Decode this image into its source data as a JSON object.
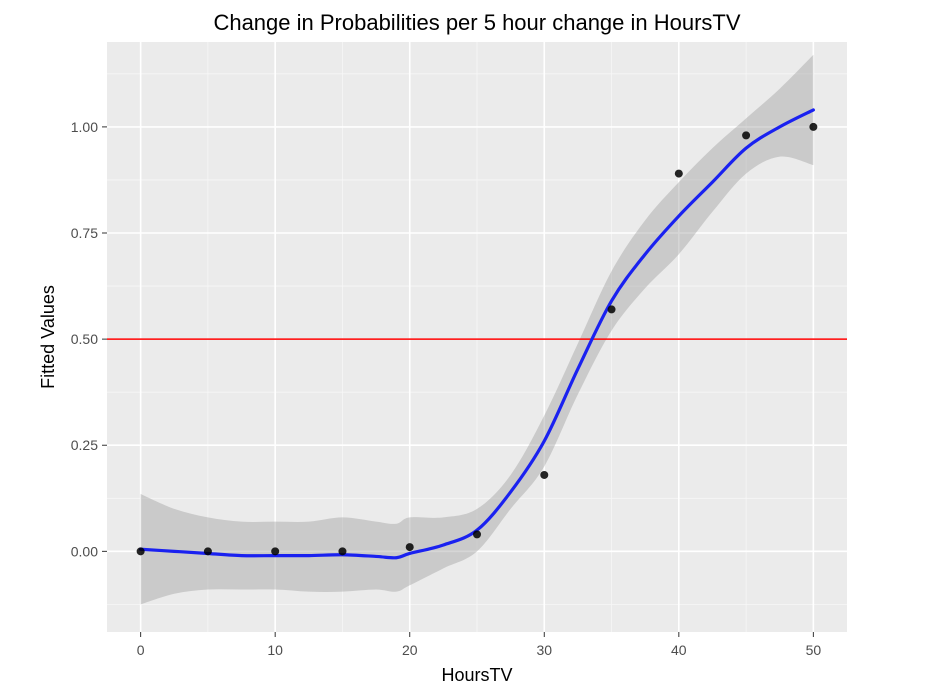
{
  "chart_data": {
    "type": "scatter",
    "title": "Change in Probabilities per 5 hour change in HoursTV",
    "xlabel": "HoursTV",
    "ylabel": "Fitted Values",
    "xlim": [
      -2.5,
      52.5
    ],
    "ylim": [
      -0.19,
      1.2
    ],
    "x_ticks": [
      0,
      10,
      20,
      30,
      40,
      50
    ],
    "x_tick_labels": [
      "0",
      "10",
      "20",
      "30",
      "40",
      "50"
    ],
    "y_ticks": [
      0.0,
      0.25,
      0.5,
      0.75,
      1.0
    ],
    "y_tick_labels": [
      "0.00",
      "0.25",
      "0.50",
      "0.75",
      "1.00"
    ],
    "grid": true,
    "background_color": "#ebebeb",
    "points": {
      "x": [
        0,
        5,
        10,
        15,
        20,
        25,
        30,
        35,
        40,
        45,
        50
      ],
      "y": [
        0.0,
        0.0,
        0.0,
        0.0,
        0.01,
        0.04,
        0.18,
        0.57,
        0.89,
        0.98,
        1.0
      ],
      "color": "#000000"
    },
    "smooth": {
      "x": [
        0,
        2.5,
        5,
        7.5,
        10,
        12.5,
        15,
        17.5,
        19,
        20,
        22.5,
        25,
        27.5,
        30,
        32.5,
        35,
        37.5,
        40,
        42.5,
        45,
        47.5,
        50
      ],
      "y": [
        0.005,
        0.0,
        -0.005,
        -0.01,
        -0.01,
        -0.01,
        -0.008,
        -0.012,
        -0.015,
        -0.005,
        0.015,
        0.05,
        0.14,
        0.26,
        0.43,
        0.59,
        0.7,
        0.79,
        0.87,
        0.95,
        1.0,
        1.04
      ],
      "lower": [
        -0.125,
        -0.1,
        -0.09,
        -0.09,
        -0.09,
        -0.095,
        -0.095,
        -0.09,
        -0.095,
        -0.08,
        -0.04,
        0.0,
        0.1,
        0.2,
        0.37,
        0.52,
        0.62,
        0.7,
        0.8,
        0.89,
        0.93,
        0.91
      ],
      "upper": [
        0.135,
        0.1,
        0.08,
        0.07,
        0.07,
        0.07,
        0.08,
        0.07,
        0.065,
        0.08,
        0.08,
        0.1,
        0.18,
        0.32,
        0.49,
        0.66,
        0.78,
        0.87,
        0.95,
        1.02,
        1.09,
        1.17
      ],
      "color": "#1a21f0",
      "band_color": "#999999"
    },
    "hline": {
      "y": 0.5,
      "color": "#ff0000"
    }
  }
}
